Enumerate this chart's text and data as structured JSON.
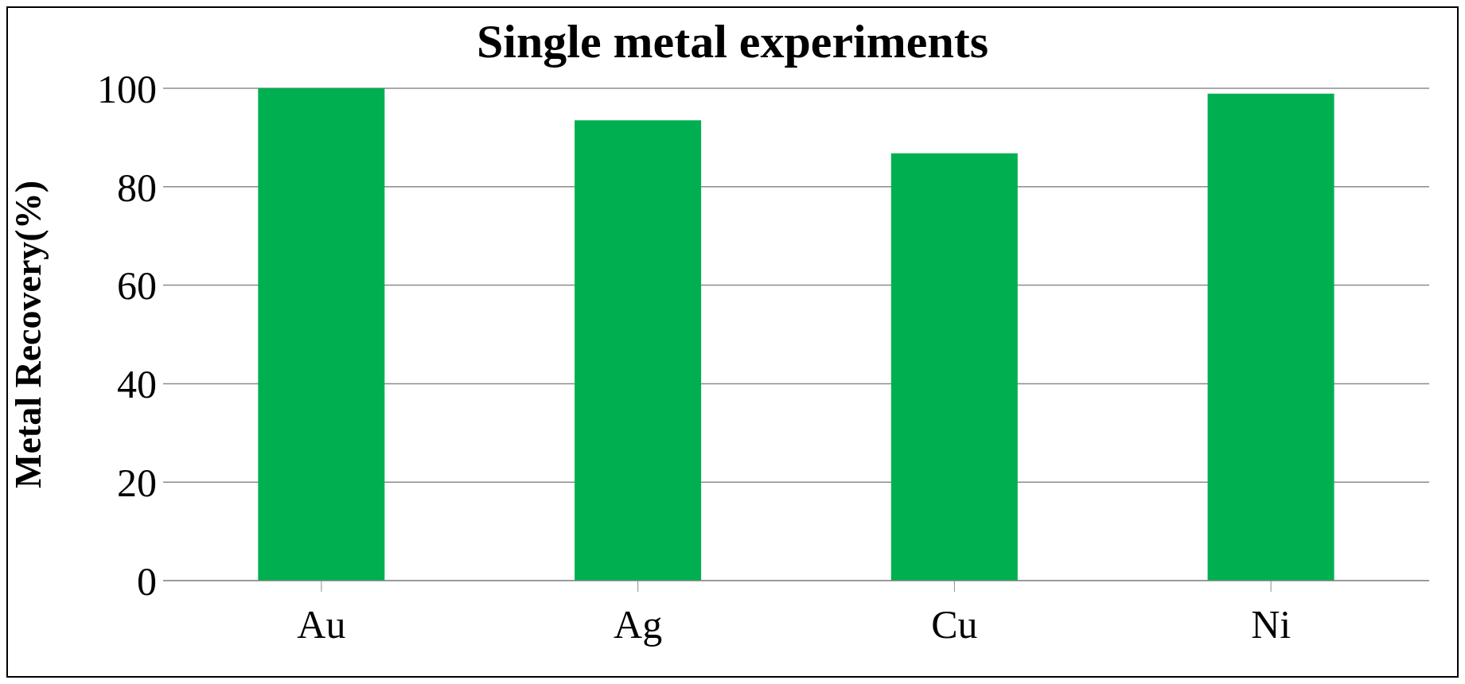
{
  "chart_data": {
    "type": "bar",
    "title": "Single metal experiments",
    "ylabel": "Metal Recovery(%)",
    "categories": [
      "Au",
      "Ag",
      "Cu",
      "Ni"
    ],
    "values": [
      100,
      93.5,
      86.8,
      98.9
    ],
    "color": "#00b050",
    "ylim": [
      0,
      100
    ],
    "yticks": [
      0,
      20,
      40,
      60,
      80,
      100
    ],
    "grid": "y"
  }
}
